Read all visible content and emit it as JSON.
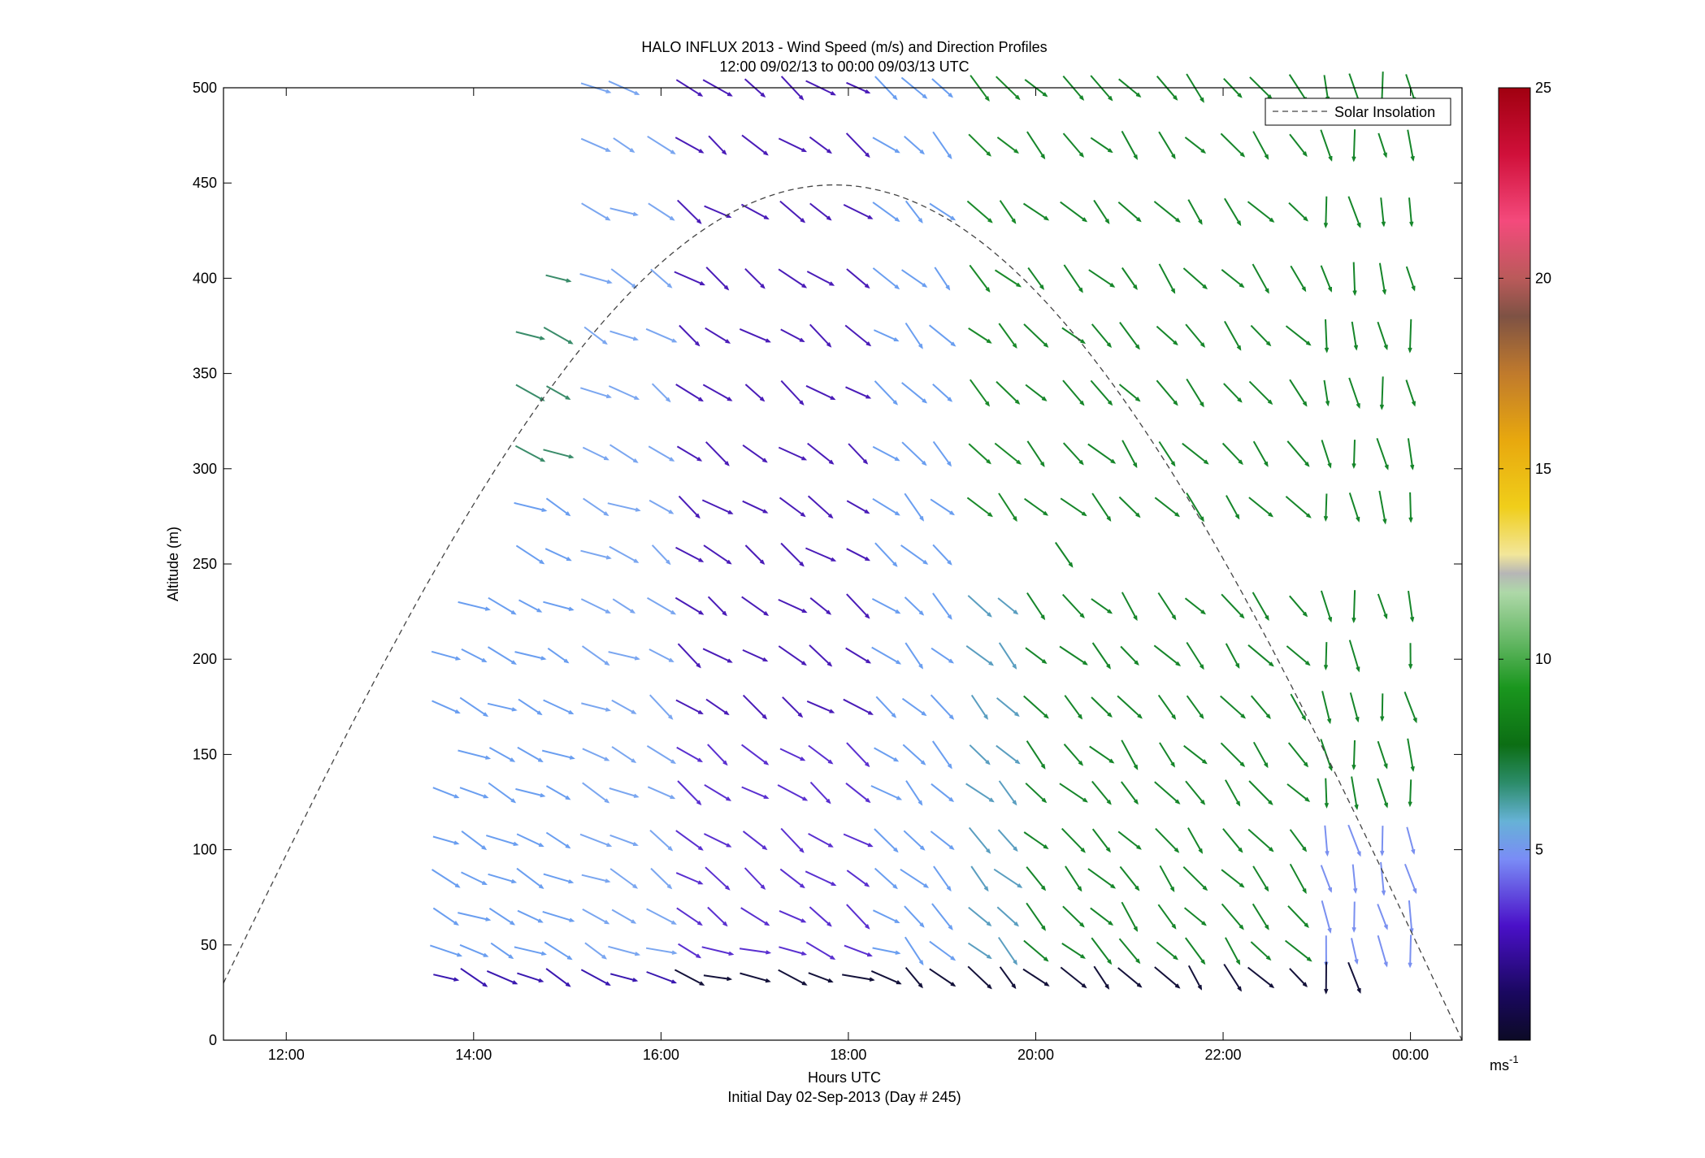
{
  "chart_data": {
    "type": "quiver",
    "title_line1": "HALO INFLUX 2013 - Wind Speed (m/s) and Direction Profiles",
    "title_line2": "12:00 09/02/13 to 00:00 09/03/13  UTC",
    "xlabel": "Hours UTC",
    "xlabel_sub": "Initial Day 02-Sep-2013 (Day # 245)",
    "ylabel": "Altitude (m)",
    "xlim_hours": [
      11.33,
      24.55
    ],
    "ylim": [
      0,
      500
    ],
    "x_ticks": [
      {
        "hour": 12,
        "label": "12:00"
      },
      {
        "hour": 14,
        "label": "14:00"
      },
      {
        "hour": 16,
        "label": "16:00"
      },
      {
        "hour": 18,
        "label": "18:00"
      },
      {
        "hour": 20,
        "label": "20:00"
      },
      {
        "hour": 22,
        "label": "22:00"
      },
      {
        "hour": 24,
        "label": "00:00"
      }
    ],
    "y_ticks": [
      0,
      50,
      100,
      150,
      200,
      250,
      300,
      350,
      400,
      450,
      500
    ],
    "legend": {
      "label": "Solar Insolation",
      "position": "top-right"
    },
    "colorbar": {
      "range": [
        0,
        25
      ],
      "ticks": [
        5,
        10,
        15,
        20,
        25
      ],
      "unit": "ms",
      "unit_exp": "-1"
    },
    "colors": {
      "solar_line": "#444444",
      "axis": "#000000"
    },
    "solar_curve": {
      "start_hour": 11.33,
      "start_alt": 30,
      "peak_hour": 17.85,
      "peak_alt": 449,
      "end_hour": 24.55,
      "end_alt": 0
    },
    "rows": [
      {
        "alt": 500,
        "hours": [
          15.3,
          15.6,
          16.3,
          16.6,
          17.0,
          17.4,
          17.7,
          18.1,
          18.4,
          18.7,
          19.0,
          19.4,
          19.7,
          20.0,
          20.4,
          20.7,
          21.0,
          21.4,
          21.7,
          22.1,
          22.4,
          22.8,
          23.1,
          23.4,
          23.7,
          24.0
        ]
      },
      {
        "alt": 470,
        "hours": [
          15.3,
          15.6,
          16.0,
          16.3,
          16.6,
          17.0,
          17.4,
          17.7,
          18.1,
          18.4,
          18.7,
          19.0,
          19.4,
          19.7,
          20.0,
          20.4,
          20.7,
          21.0,
          21.4,
          21.7,
          22.1,
          22.4,
          22.8,
          23.1,
          23.4,
          23.7,
          24.0
        ]
      },
      {
        "alt": 435,
        "hours": [
          15.3,
          15.6,
          16.0,
          16.3,
          16.6,
          17.0,
          17.4,
          17.7,
          18.1,
          18.4,
          18.7,
          19.0,
          19.4,
          19.7,
          20.0,
          20.4,
          20.7,
          21.0,
          21.4,
          21.7,
          22.1,
          22.4,
          22.8,
          23.1,
          23.4,
          23.7,
          24.0
        ]
      },
      {
        "alt": 400,
        "hours": [
          14.9,
          15.3,
          15.6,
          16.0,
          16.3,
          16.6,
          17.0,
          17.4,
          17.7,
          18.1,
          18.4,
          18.7,
          19.0,
          19.4,
          19.7,
          20.0,
          20.4,
          20.7,
          21.0,
          21.4,
          21.7,
          22.1,
          22.4,
          22.8,
          23.1,
          23.4,
          23.7,
          24.0
        ]
      },
      {
        "alt": 370,
        "hours": [
          14.6,
          14.9,
          15.3,
          15.6,
          16.0,
          16.3,
          16.6,
          17.0,
          17.4,
          17.7,
          18.1,
          18.4,
          18.7,
          19.0,
          19.4,
          19.7,
          20.0,
          20.4,
          20.7,
          21.0,
          21.4,
          21.7,
          22.1,
          22.4,
          22.8,
          23.1,
          23.4,
          23.7,
          24.0
        ]
      },
      {
        "alt": 340,
        "hours": [
          14.6,
          14.9,
          15.3,
          15.6,
          16.0,
          16.3,
          16.6,
          17.0,
          17.4,
          17.7,
          18.1,
          18.4,
          18.7,
          19.0,
          19.4,
          19.7,
          20.0,
          20.4,
          20.7,
          21.0,
          21.4,
          21.7,
          22.1,
          22.4,
          22.8,
          23.1,
          23.4,
          23.7,
          24.0
        ]
      },
      {
        "alt": 308,
        "hours": [
          14.6,
          14.9,
          15.3,
          15.6,
          16.0,
          16.3,
          16.6,
          17.0,
          17.4,
          17.7,
          18.1,
          18.4,
          18.7,
          19.0,
          19.4,
          19.7,
          20.0,
          20.4,
          20.7,
          21.0,
          21.4,
          21.7,
          22.1,
          22.4,
          22.8,
          23.1,
          23.4,
          23.7,
          24.0
        ]
      },
      {
        "alt": 280,
        "hours": [
          14.6,
          14.9,
          15.3,
          15.6,
          16.0,
          16.3,
          16.6,
          17.0,
          17.4,
          17.7,
          18.1,
          18.4,
          18.7,
          19.0,
          19.4,
          19.7,
          20.0,
          20.4,
          20.7,
          21.0,
          21.4,
          21.7,
          22.1,
          22.4,
          22.8,
          23.1,
          23.4,
          23.7,
          24.0
        ]
      },
      {
        "alt": 255,
        "hours": [
          14.6,
          14.9,
          15.3,
          15.6,
          16.0,
          16.3,
          16.6,
          17.0,
          17.4,
          17.7,
          18.1,
          18.4,
          18.7,
          19.0,
          20.3
        ]
      },
      {
        "alt": 228,
        "hours": [
          14.0,
          14.3,
          14.6,
          14.9,
          15.3,
          15.6,
          16.0,
          16.3,
          16.6,
          17.0,
          17.4,
          17.7,
          18.1,
          18.4,
          18.7,
          19.0,
          19.4,
          19.7,
          20.0,
          20.4,
          20.7,
          21.0,
          21.4,
          21.7,
          22.1,
          22.4,
          22.8,
          23.1,
          23.4,
          23.7,
          24.0
        ]
      },
      {
        "alt": 202,
        "hours": [
          13.7,
          14.0,
          14.3,
          14.6,
          14.9,
          15.3,
          15.6,
          16.0,
          16.3,
          16.6,
          17.0,
          17.4,
          17.7,
          18.1,
          18.4,
          18.7,
          19.0,
          19.4,
          19.7,
          20.0,
          20.4,
          20.7,
          21.0,
          21.4,
          21.7,
          22.1,
          22.4,
          22.8,
          23.1,
          23.4,
          24.0
        ]
      },
      {
        "alt": 175,
        "hours": [
          13.7,
          14.0,
          14.3,
          14.6,
          14.9,
          15.3,
          15.6,
          16.0,
          16.3,
          16.6,
          17.0,
          17.4,
          17.7,
          18.1,
          18.4,
          18.7,
          19.0,
          19.4,
          19.7,
          20.0,
          20.4,
          20.7,
          21.0,
          21.4,
          21.7,
          22.1,
          22.4,
          22.8,
          23.1,
          23.4,
          23.7,
          24.0
        ]
      },
      {
        "alt": 150,
        "hours": [
          14.0,
          14.3,
          14.6,
          14.9,
          15.3,
          15.6,
          16.0,
          16.3,
          16.6,
          17.0,
          17.4,
          17.7,
          18.1,
          18.4,
          18.7,
          19.0,
          19.4,
          19.7,
          20.0,
          20.4,
          20.7,
          21.0,
          21.4,
          21.7,
          22.1,
          22.4,
          22.8,
          23.1,
          23.4,
          23.7,
          24.0
        ]
      },
      {
        "alt": 130,
        "hours": [
          13.7,
          14.0,
          14.3,
          14.6,
          14.9,
          15.3,
          15.6,
          16.0,
          16.3,
          16.6,
          17.0,
          17.4,
          17.7,
          18.1,
          18.4,
          18.7,
          19.0,
          19.4,
          19.7,
          20.0,
          20.4,
          20.7,
          21.0,
          21.4,
          21.7,
          22.1,
          22.4,
          22.8,
          23.1,
          23.4,
          23.7,
          24.0
        ]
      },
      {
        "alt": 105,
        "hours": [
          13.7,
          14.0,
          14.3,
          14.6,
          14.9,
          15.3,
          15.6,
          16.0,
          16.3,
          16.6,
          17.0,
          17.4,
          17.7,
          18.1,
          18.4,
          18.7,
          19.0,
          19.4,
          19.7,
          20.0,
          20.4,
          20.7,
          21.0,
          21.4,
          21.7,
          22.1,
          22.4,
          22.8,
          23.1,
          23.4,
          23.7,
          24.0
        ]
      },
      {
        "alt": 85,
        "hours": [
          13.7,
          14.0,
          14.3,
          14.6,
          14.9,
          15.3,
          15.6,
          16.0,
          16.3,
          16.6,
          17.0,
          17.4,
          17.7,
          18.1,
          18.4,
          18.7,
          19.0,
          19.4,
          19.7,
          20.0,
          20.4,
          20.7,
          21.0,
          21.4,
          21.7,
          22.1,
          22.4,
          22.8,
          23.1,
          23.4,
          23.7,
          24.0
        ]
      },
      {
        "alt": 65,
        "hours": [
          13.7,
          14.0,
          14.3,
          14.6,
          14.9,
          15.3,
          15.6,
          16.0,
          16.3,
          16.6,
          17.0,
          17.4,
          17.7,
          18.1,
          18.4,
          18.7,
          19.0,
          19.4,
          19.7,
          20.0,
          20.4,
          20.7,
          21.0,
          21.4,
          21.7,
          22.1,
          22.4,
          22.8,
          23.1,
          23.4,
          23.7,
          24.0
        ]
      },
      {
        "alt": 47,
        "hours": [
          13.7,
          14.0,
          14.3,
          14.6,
          14.9,
          15.3,
          15.6,
          16.0,
          16.3,
          16.6,
          17.0,
          17.4,
          17.7,
          18.1,
          18.4,
          18.7,
          19.0,
          19.4,
          19.7,
          20.0,
          20.4,
          20.7,
          21.0,
          21.4,
          21.7,
          22.1,
          22.4,
          22.8,
          23.1,
          23.4,
          23.7,
          24.0
        ]
      },
      {
        "alt": 33,
        "hours": [
          13.7,
          14.0,
          14.3,
          14.6,
          14.9,
          15.3,
          15.6,
          16.0,
          16.3,
          16.6,
          17.0,
          17.4,
          17.7,
          18.1,
          18.4,
          18.7,
          19.0,
          19.4,
          19.7,
          20.0,
          20.4,
          20.7,
          21.0,
          21.4,
          21.7,
          22.1,
          22.4,
          22.8,
          23.1,
          23.4
        ]
      }
    ]
  }
}
